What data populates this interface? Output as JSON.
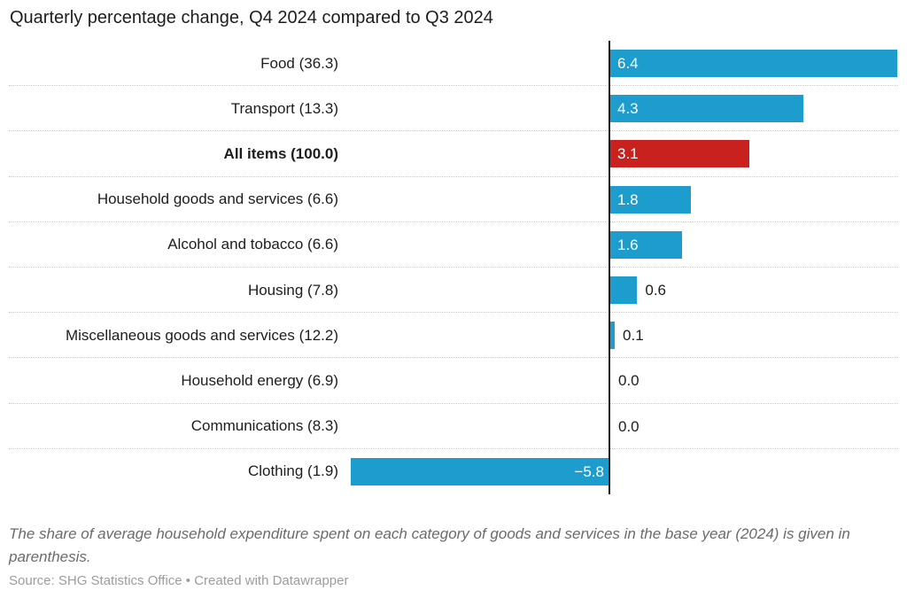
{
  "header": {
    "title": "Quarterly percentage change, Q4 2024 compared to Q3 2024"
  },
  "colors": {
    "bar_default": "#1c9dce",
    "bar_highlight": "#c9211e",
    "axis": "#1a1a1a",
    "grid_dots": "#cdcdcd",
    "value_inside_text": "#ffffff",
    "value_outside_text": "#1d1d1d"
  },
  "chart_data": {
    "type": "bar",
    "orientation": "horizontal",
    "title": "Quarterly percentage change, Q4 2024 compared to Q3 2024",
    "categories": [
      "Food (36.3)",
      "Transport (13.3)",
      "All items (100.0)",
      "Household goods and services (6.6)",
      "Alcohol and tobacco (6.6)",
      "Housing (7.8)",
      "Miscellaneous goods and services (12.2)",
      "Household energy (6.9)",
      "Communications (8.3)",
      "Clothing (1.9)"
    ],
    "values": [
      6.4,
      4.3,
      3.1,
      1.8,
      1.6,
      0.6,
      0.1,
      0.0,
      0.0,
      -5.8
    ],
    "value_labels": [
      "6.4",
      "4.3",
      "3.1",
      "1.8",
      "1.6",
      "0.6",
      "0.1",
      "0.0",
      "0.0",
      "−5.8"
    ],
    "highlight_index": 2,
    "xlim": [
      -5.8,
      6.4
    ],
    "grid": "dotted horizontal row separators",
    "legend": "none",
    "zero_axis": "vertical black line"
  },
  "footer": {
    "note": "The share of average household expenditure spent on each category of goods and services in the base year (2024) is given in parenthesis.",
    "source_prefix": "Source: SHG Statistics Office •",
    "credit": "Created with Datawrapper"
  }
}
